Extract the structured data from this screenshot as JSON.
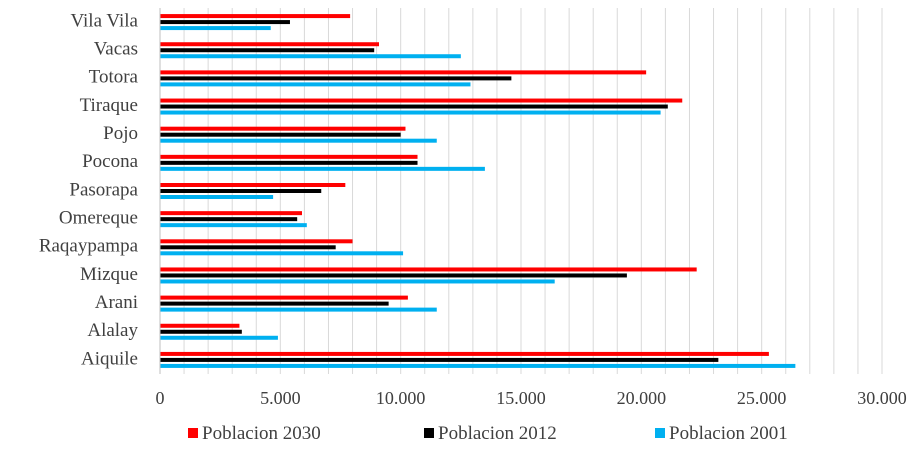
{
  "chart_data": {
    "type": "bar",
    "orientation": "horizontal",
    "categories": [
      "Aiquile",
      "Alalay",
      "Arani",
      "Mizque",
      "Raqaypampa",
      "Omereque",
      "Pasorapa",
      "Pocona",
      "Pojo",
      "Tiraque",
      "Totora",
      "Vacas",
      "Vila Vila"
    ],
    "series": [
      {
        "name": "Poblacion 2030",
        "color": "#ff0000",
        "values": [
          25300,
          3300,
          10300,
          22300,
          8000,
          5900,
          7700,
          10700,
          10200,
          21700,
          20200,
          9100,
          7900
        ]
      },
      {
        "name": "Poblacion 2012",
        "color": "#000000",
        "values": [
          23200,
          3400,
          9500,
          19400,
          7300,
          5700,
          6700,
          10700,
          10000,
          21100,
          14600,
          8900,
          5400
        ]
      },
      {
        "name": "Poblacion 2001",
        "color": "#00b0f0",
        "values": [
          26400,
          4900,
          11500,
          16400,
          10100,
          6100,
          4700,
          13500,
          11500,
          20800,
          12900,
          12500,
          4600
        ]
      }
    ],
    "xlim": [
      0,
      30000
    ],
    "xticks": [
      0,
      5000,
      10000,
      15000,
      20000,
      25000,
      30000
    ],
    "xtick_labels": [
      "0",
      "5.000",
      "10.000",
      "15.000",
      "20.000",
      "25.000",
      "30.000"
    ],
    "grid": "vertical, every 1000",
    "legend_position": "bottom"
  }
}
